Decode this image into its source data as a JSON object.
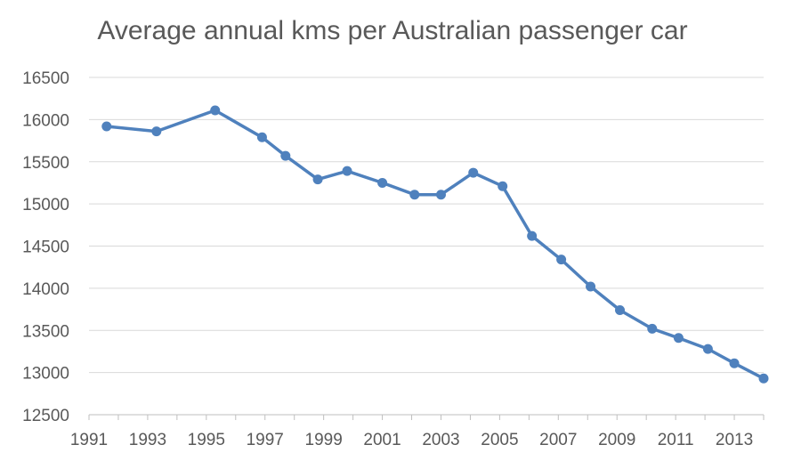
{
  "chart_data": {
    "type": "line",
    "title": "Average annual kms per Australian passenger car",
    "xlabel": "",
    "ylabel": "",
    "xlim": [
      1991,
      2014
    ],
    "ylim": [
      12500,
      16500
    ],
    "x_ticks": [
      "1991",
      "1993",
      "1995",
      "1997",
      "1999",
      "2001",
      "2003",
      "2005",
      "2007",
      "2009",
      "2011",
      "2013"
    ],
    "y_ticks": [
      "12500",
      "13000",
      "13500",
      "14000",
      "14500",
      "15000",
      "15500",
      "16000",
      "16500"
    ],
    "grid": true,
    "legend": "none",
    "series": [
      {
        "name": "Average annual kms",
        "color": "#4f81bd",
        "x": [
          1991.6,
          1993.3,
          1995.3,
          1996.9,
          1997.7,
          1998.8,
          1999.8,
          2001.0,
          2002.1,
          2003.0,
          2004.1,
          2005.1,
          2006.1,
          2007.1,
          2008.1,
          2009.1,
          2010.2,
          2011.1,
          2012.1,
          2013.0,
          2014.0
        ],
        "values": [
          15920,
          15860,
          16110,
          15790,
          15570,
          15290,
          15390,
          15250,
          15110,
          15110,
          15370,
          15210,
          14620,
          14340,
          14020,
          13740,
          13520,
          13410,
          13280,
          13110,
          12930
        ]
      }
    ]
  }
}
